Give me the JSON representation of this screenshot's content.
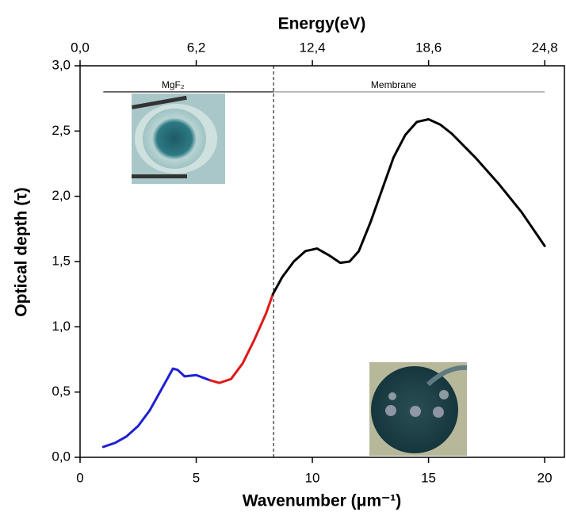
{
  "chart_data": {
    "type": "line",
    "x_label": "Wavenumber (μm⁻¹)",
    "y_label": "Optical depth (τ)",
    "x2_label": "Energy(eV)",
    "xlim": [
      0,
      20.85
    ],
    "xticks": [
      0,
      5,
      10,
      15,
      20
    ],
    "x2lim": [
      0,
      25.85
    ],
    "x2ticks": [
      {
        "value": 0,
        "label": "0,0"
      },
      {
        "value": 6.2,
        "label": "6,2"
      },
      {
        "value": 12.4,
        "label": "12,4"
      },
      {
        "value": 18.6,
        "label": "18,6"
      },
      {
        "value": 24.8,
        "label": "24,8"
      }
    ],
    "ylim": [
      0,
      3
    ],
    "yticks": [
      {
        "value": 0,
        "label": "0,0"
      },
      {
        "value": 0.5,
        "label": "0,5"
      },
      {
        "value": 1,
        "label": "1,0"
      },
      {
        "value": 1.5,
        "label": "1,5"
      },
      {
        "value": 2,
        "label": "2,0"
      },
      {
        "value": 2.5,
        "label": "2,5"
      },
      {
        "value": 3,
        "label": "3,0"
      }
    ],
    "series": [
      {
        "color": "#1f1fd6",
        "x": [
          1,
          1.5,
          2,
          2.5,
          3,
          3.5,
          4,
          4.2,
          4.5,
          5,
          5.3,
          5.6
        ],
        "values": [
          0.08,
          0.11,
          0.16,
          0.24,
          0.36,
          0.52,
          0.68,
          0.67,
          0.62,
          0.63,
          0.61,
          0.59
        ]
      },
      {
        "color": "#e01818",
        "x": [
          5.6,
          6,
          6.5,
          7,
          7.5,
          8,
          8.3
        ],
        "values": [
          0.59,
          0.57,
          0.6,
          0.72,
          0.9,
          1.1,
          1.25
        ]
      },
      {
        "color": "#000000",
        "x": [
          8.3,
          8.7,
          9.2,
          9.7,
          10.2,
          10.7,
          11.2,
          11.6,
          12,
          12.5,
          13,
          13.5,
          14,
          14.5,
          15,
          15.5,
          16,
          17,
          18,
          19,
          20
        ],
        "values": [
          1.25,
          1.38,
          1.5,
          1.58,
          1.6,
          1.55,
          1.49,
          1.5,
          1.58,
          1.8,
          2.05,
          2.3,
          2.47,
          2.57,
          2.59,
          2.55,
          2.48,
          2.3,
          2.1,
          1.88,
          1.62
        ]
      }
    ],
    "annotations": [
      {
        "text": "MgF₂",
        "x": 4.0,
        "y": 2.85,
        "line_from": 1,
        "line_to": 8.33,
        "line_y": 2.8,
        "color": "#000000"
      },
      {
        "text": "Membrane",
        "x": 13.5,
        "y": 2.85,
        "line_from": 8.33,
        "line_to": 20,
        "line_y": 2.8,
        "color": "#888888"
      }
    ],
    "divider_x": 8.33
  }
}
